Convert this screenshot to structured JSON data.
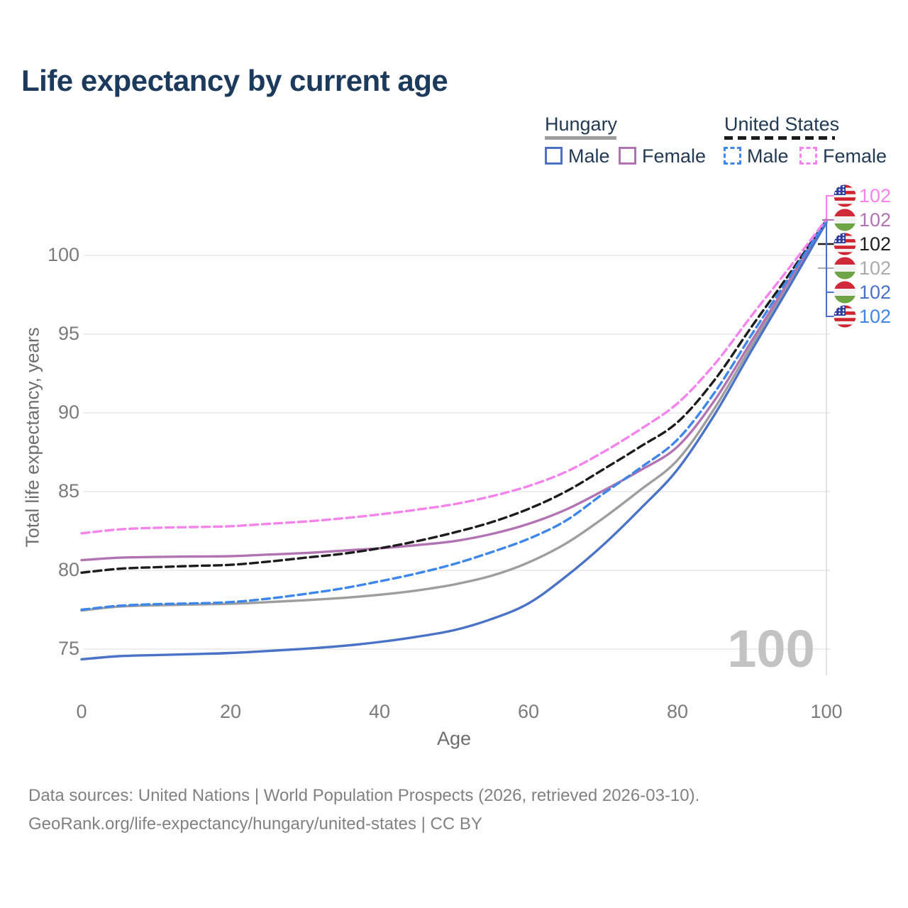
{
  "title": "Life expectancy by current age",
  "legend": {
    "groups": [
      {
        "label": "Hungary",
        "underline": "solid",
        "underline_color": "#9e9e9e",
        "items": [
          {
            "label": "Male",
            "color": "#4a73c8",
            "dashed": false
          },
          {
            "label": "Female",
            "color": "#b273b2",
            "dashed": false
          }
        ]
      },
      {
        "label": "United States",
        "underline": "dashed",
        "underline_color": "#1c1c1c",
        "items": [
          {
            "label": "Male",
            "color": "#3d87ea",
            "dashed": true
          },
          {
            "label": "Female",
            "color": "#f583ec",
            "dashed": true
          }
        ]
      }
    ]
  },
  "chart_data": {
    "type": "line",
    "title": "Life expectancy by current age",
    "xlabel": "Age",
    "ylabel": "Total life expectancy, years",
    "x_ticks": [
      0,
      20,
      40,
      60,
      80,
      100
    ],
    "y_ticks": [
      75,
      80,
      85,
      90,
      95,
      100
    ],
    "xlim": [
      0,
      100
    ],
    "ylim": [
      75,
      100
    ],
    "grid": "horizontal",
    "legend_position": "top-right",
    "ages": [
      0,
      5,
      10,
      15,
      20,
      25,
      30,
      35,
      40,
      45,
      50,
      55,
      60,
      65,
      70,
      75,
      80,
      85,
      90,
      95,
      100
    ],
    "series": [
      {
        "id": "hungary-total",
        "name": "Hungary Total",
        "country": "Hungary",
        "sex": "Total",
        "color": "#9e9e9e",
        "dashed": false,
        "values": [
          77.45,
          77.7,
          77.78,
          77.83,
          77.88,
          77.98,
          78.1,
          78.25,
          78.45,
          78.72,
          79.1,
          79.65,
          80.5,
          81.7,
          83.3,
          85.1,
          87.0,
          90.3,
          94.3,
          98.2,
          102.2
        ]
      },
      {
        "id": "hungary-female",
        "name": "Hungary Female",
        "country": "Hungary",
        "sex": "Female",
        "color": "#b273b2",
        "dashed": false,
        "values": [
          80.65,
          80.8,
          80.85,
          80.88,
          80.9,
          81.0,
          81.1,
          81.25,
          81.4,
          81.6,
          81.85,
          82.3,
          82.95,
          83.85,
          85.05,
          86.35,
          87.85,
          90.8,
          94.6,
          98.4,
          102.2
        ]
      },
      {
        "id": "hungary-male",
        "name": "Hungary Male",
        "country": "Hungary",
        "sex": "Male",
        "color": "#4a73c8",
        "dashed": false,
        "values": [
          74.35,
          74.55,
          74.62,
          74.68,
          74.75,
          74.88,
          75.02,
          75.2,
          75.45,
          75.78,
          76.2,
          76.9,
          77.9,
          79.6,
          81.6,
          83.9,
          86.4,
          89.9,
          94.0,
          98.0,
          102.1
        ]
      },
      {
        "id": "us-total",
        "name": "United States Total",
        "country": "United States",
        "sex": "Total",
        "color": "#1c1c1c",
        "dashed": true,
        "values": [
          79.85,
          80.1,
          80.2,
          80.28,
          80.35,
          80.55,
          80.8,
          81.05,
          81.4,
          81.85,
          82.4,
          83.05,
          83.9,
          85.0,
          86.4,
          87.85,
          89.4,
          92.1,
          95.5,
          98.8,
          102.25
        ]
      },
      {
        "id": "us-male",
        "name": "United States Male",
        "country": "United States",
        "sex": "Male",
        "color": "#3d87ea",
        "dashed": true,
        "values": [
          77.5,
          77.75,
          77.85,
          77.9,
          77.98,
          78.2,
          78.5,
          78.85,
          79.3,
          79.8,
          80.4,
          81.15,
          82.0,
          83.15,
          84.85,
          86.5,
          88.3,
          91.3,
          95.0,
          98.6,
          102.2
        ]
      },
      {
        "id": "us-female",
        "name": "United States Female",
        "country": "United States",
        "sex": "Female",
        "color": "#f583ec",
        "dashed": true,
        "values": [
          82.35,
          82.6,
          82.7,
          82.75,
          82.8,
          82.95,
          83.1,
          83.3,
          83.55,
          83.85,
          84.2,
          84.7,
          85.35,
          86.25,
          87.5,
          88.95,
          90.6,
          93.1,
          96.2,
          99.2,
          102.3
        ]
      }
    ],
    "hover": {
      "age": 100,
      "age_label": "100"
    }
  },
  "end_labels": [
    {
      "series_id": "us-female",
      "flag": "us",
      "value": "102",
      "color": "#f583ec"
    },
    {
      "series_id": "hungary-female",
      "flag": "hu",
      "value": "102",
      "color": "#b273b2"
    },
    {
      "series_id": "us-total",
      "flag": "us",
      "value": "102",
      "color": "#1f1f1f"
    },
    {
      "series_id": "hungary-total",
      "flag": "hu",
      "value": "102",
      "color": "#ababab"
    },
    {
      "series_id": "hungary-male",
      "flag": "hu",
      "value": "102",
      "color": "#4a73c8"
    },
    {
      "series_id": "us-male",
      "flag": "us",
      "value": "102",
      "color": "#3f86e8"
    }
  ],
  "watermark": "100",
  "footer": {
    "line1": "Data sources: United Nations | World Population Prospects (2026, retrieved 2026-03-10).",
    "line2": "GeoRank.org/life-expectancy/hungary/united-states | CC BY"
  }
}
